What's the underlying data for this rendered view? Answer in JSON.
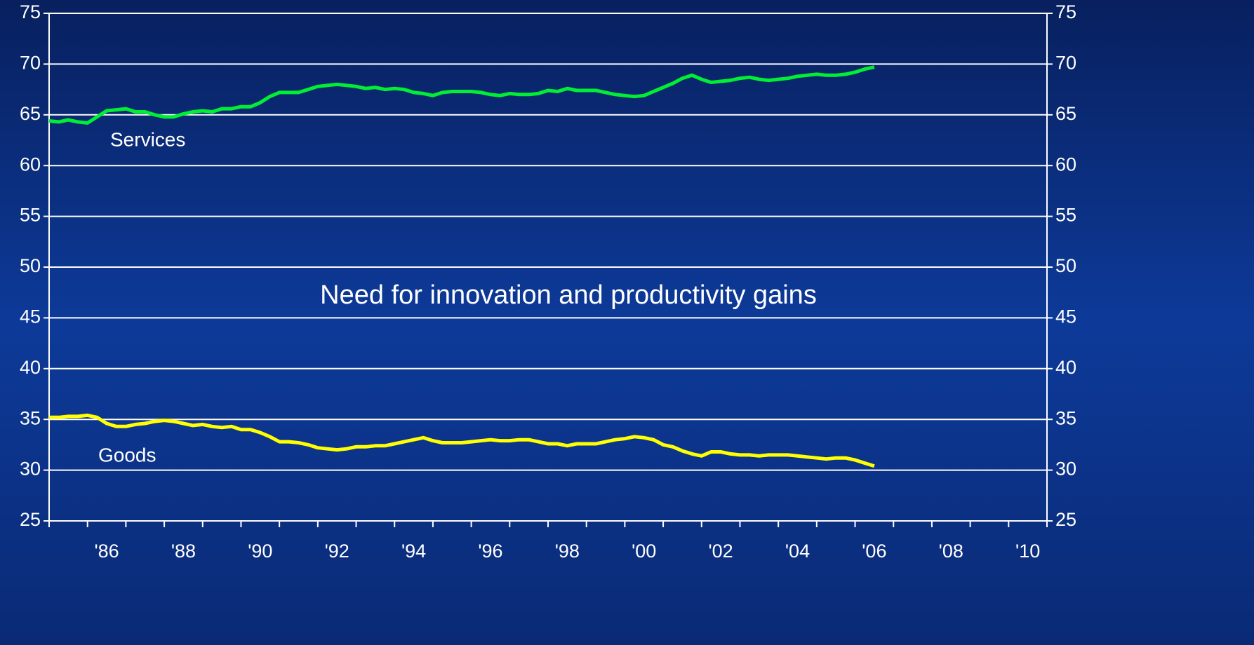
{
  "chart_data": {
    "type": "line",
    "annotation": "Need for innovation and productivity gains",
    "x": [
      1985.0,
      1985.25,
      1985.5,
      1985.75,
      1986.0,
      1986.25,
      1986.5,
      1986.75,
      1987.0,
      1987.25,
      1987.5,
      1987.75,
      1988.0,
      1988.25,
      1988.5,
      1988.75,
      1989.0,
      1989.25,
      1989.5,
      1989.75,
      1990.0,
      1990.25,
      1990.5,
      1990.75,
      1991.0,
      1991.25,
      1991.5,
      1991.75,
      1992.0,
      1992.25,
      1992.5,
      1992.75,
      1993.0,
      1993.25,
      1993.5,
      1993.75,
      1994.0,
      1994.25,
      1994.5,
      1994.75,
      1995.0,
      1995.25,
      1995.5,
      1995.75,
      1996.0,
      1996.25,
      1996.5,
      1996.75,
      1997.0,
      1997.25,
      1997.5,
      1997.75,
      1998.0,
      1998.25,
      1998.5,
      1998.75,
      1999.0,
      1999.25,
      1999.5,
      1999.75,
      2000.0,
      2000.25,
      2000.5,
      2000.75,
      2001.0,
      2001.25,
      2001.5,
      2001.75,
      2002.0,
      2002.25,
      2002.5,
      2002.75,
      2003.0,
      2003.25,
      2003.5,
      2003.75,
      2004.0,
      2004.25,
      2004.5,
      2004.75,
      2005.0,
      2005.25,
      2005.5,
      2005.75,
      2006.0,
      2006.25,
      2006.5
    ],
    "series": [
      {
        "name": "Services",
        "color": "#00ee33",
        "values": [
          64.4,
          64.3,
          64.5,
          64.3,
          64.2,
          64.8,
          65.4,
          65.5,
          65.6,
          65.3,
          65.3,
          65.0,
          64.8,
          64.8,
          65.1,
          65.3,
          65.4,
          65.3,
          65.6,
          65.6,
          65.8,
          65.8,
          66.2,
          66.8,
          67.2,
          67.2,
          67.2,
          67.5,
          67.8,
          67.9,
          68.0,
          67.9,
          67.8,
          67.6,
          67.7,
          67.5,
          67.6,
          67.5,
          67.2,
          67.1,
          66.9,
          67.2,
          67.3,
          67.3,
          67.3,
          67.2,
          67.0,
          66.9,
          67.1,
          67.0,
          67.0,
          67.1,
          67.4,
          67.3,
          67.6,
          67.4,
          67.4,
          67.4,
          67.2,
          67.0,
          66.9,
          66.8,
          66.9,
          67.3,
          67.7,
          68.1,
          68.6,
          68.9,
          68.5,
          68.2,
          68.3,
          68.4,
          68.6,
          68.7,
          68.5,
          68.4,
          68.5,
          68.6,
          68.8,
          68.9,
          69.0,
          68.9,
          68.9,
          69.0,
          69.2,
          69.5,
          69.7
        ]
      },
      {
        "name": "Goods",
        "color": "#ffff00",
        "values": [
          35.2,
          35.2,
          35.3,
          35.3,
          35.4,
          35.2,
          34.6,
          34.3,
          34.3,
          34.5,
          34.6,
          34.8,
          34.9,
          34.8,
          34.6,
          34.4,
          34.5,
          34.3,
          34.2,
          34.3,
          34.0,
          34.0,
          33.7,
          33.3,
          32.8,
          32.8,
          32.7,
          32.5,
          32.2,
          32.1,
          32.0,
          32.1,
          32.3,
          32.3,
          32.4,
          32.4,
          32.6,
          32.8,
          33.0,
          33.2,
          32.9,
          32.7,
          32.7,
          32.7,
          32.8,
          32.9,
          33.0,
          32.9,
          32.9,
          33.0,
          33.0,
          32.8,
          32.6,
          32.6,
          32.4,
          32.6,
          32.6,
          32.6,
          32.8,
          33.0,
          33.1,
          33.3,
          33.2,
          33.0,
          32.5,
          32.3,
          31.9,
          31.6,
          31.4,
          31.8,
          31.8,
          31.6,
          31.5,
          31.5,
          31.4,
          31.5,
          31.5,
          31.5,
          31.4,
          31.3,
          31.2,
          31.1,
          31.2,
          31.2,
          31.0,
          30.7,
          30.4
        ]
      }
    ],
    "xlim": [
      1985,
      2011
    ],
    "xticks": [
      {
        "value": 1986.5,
        "label": "'86"
      },
      {
        "value": 1988.5,
        "label": "'88"
      },
      {
        "value": 1990.5,
        "label": "'90"
      },
      {
        "value": 1992.5,
        "label": "'92"
      },
      {
        "value": 1994.5,
        "label": "'94"
      },
      {
        "value": 1996.5,
        "label": "'96"
      },
      {
        "value": 1998.5,
        "label": "'98"
      },
      {
        "value": 2000.5,
        "label": "'00"
      },
      {
        "value": 2002.5,
        "label": "'02"
      },
      {
        "value": 2004.5,
        "label": "'04"
      },
      {
        "value": 2006.5,
        "label": "'06"
      },
      {
        "value": 2008.5,
        "label": "'08"
      },
      {
        "value": 2010.5,
        "label": "'10"
      }
    ],
    "xminorticks": [
      1985,
      1986,
      1987,
      1988,
      1989,
      1990,
      1991,
      1992,
      1993,
      1994,
      1995,
      1996,
      1997,
      1998,
      1999,
      2000,
      2001,
      2002,
      2003,
      2004,
      2005,
      2006,
      2007,
      2008,
      2009,
      2010,
      2011
    ],
    "ylim": [
      25,
      75
    ],
    "yticks": [
      25,
      30,
      35,
      40,
      45,
      50,
      55,
      60,
      65,
      70,
      75
    ],
    "y2lim": [
      25,
      75
    ],
    "y2ticks": [
      25,
      30,
      35,
      40,
      45,
      50,
      55,
      60,
      65,
      70,
      75
    ],
    "grid": true
  }
}
